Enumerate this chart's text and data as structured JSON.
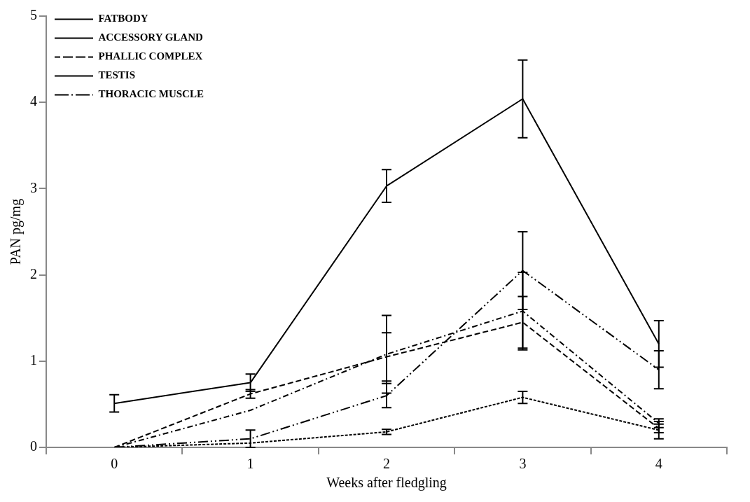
{
  "chart_data": {
    "type": "line",
    "xlabel": "Weeks after fledgling",
    "ylabel": "PAN pg/mg",
    "categories": [
      "0",
      "1",
      "2",
      "3",
      "4"
    ],
    "ylim": [
      0,
      5
    ],
    "yticks": [
      0,
      1,
      2,
      3,
      4,
      5
    ],
    "grid": false,
    "legend": "top left",
    "marker": "none",
    "series": [
      {
        "name": "FATBODY",
        "color": "#000000",
        "line_style": "solid",
        "values": [
          0.51,
          0.75,
          3.03,
          4.04,
          1.2
        ],
        "errors": [
          0.1,
          0.1,
          0.19,
          0.45,
          0.27
        ]
      },
      {
        "name": "ACCESSORY GLAND",
        "color": "#000000",
        "line_style": "dotted",
        "values": [
          0,
          0.05,
          0.18,
          0.58,
          0.2
        ],
        "errors": [
          null,
          null,
          0.03,
          0.07,
          0.1
        ]
      },
      {
        "name": "PHALLIC COMPLEX",
        "color": "#000000",
        "line_style": "dashdot",
        "values": [
          0,
          0.43,
          1.08,
          1.58,
          0.28
        ],
        "errors": [
          null,
          null,
          0.45,
          0.45,
          0.05
        ]
      },
      {
        "name": "TESTIS",
        "color": "#000000",
        "line_style": "dashed",
        "values": [
          0,
          0.62,
          1.05,
          1.45,
          0.22
        ],
        "errors": [
          null,
          0.05,
          0.28,
          0.3,
          0.05
        ]
      },
      {
        "name": "THORACIC MUSCLE",
        "color": "#000000",
        "line_style": "dashdotdot",
        "values": [
          0,
          0.1,
          0.6,
          2.05,
          0.9
        ],
        "errors": [
          null,
          0.1,
          0.14,
          0.45,
          0.22
        ]
      }
    ]
  }
}
